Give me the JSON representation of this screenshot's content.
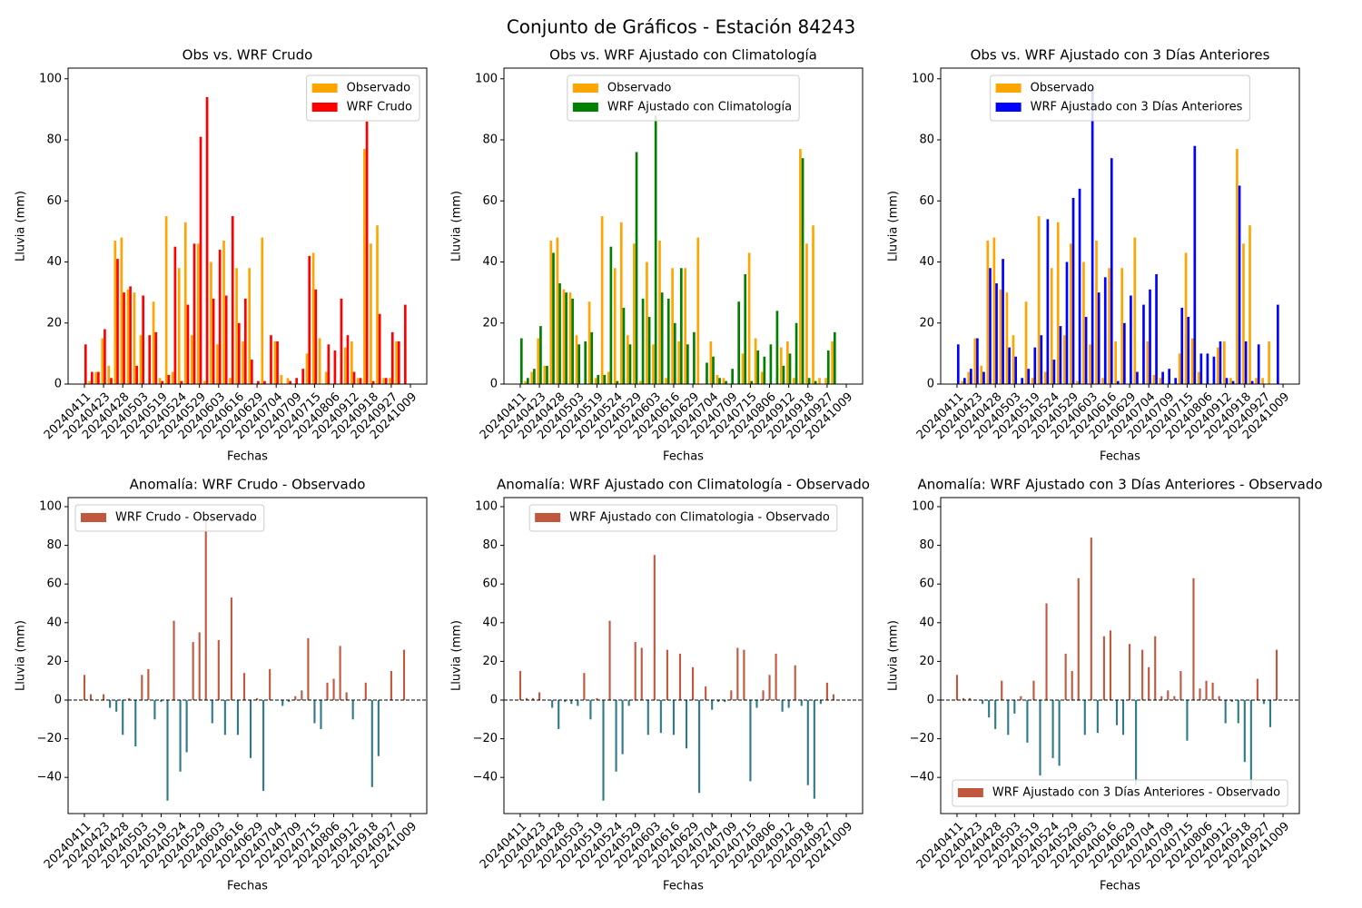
{
  "title": "Conjunto de Gráficos - Estación 84243",
  "chart_data": [
    {
      "type": "bar",
      "title": "Obs vs. WRF Crudo",
      "xlabel": "Fechas",
      "ylabel": "Lluvia (mm)",
      "legend": "upper right",
      "categories": [
        "20240411",
        null,
        null,
        "20240423",
        null,
        null,
        "20240428",
        null,
        null,
        "20240503",
        null,
        null,
        "20240519",
        null,
        null,
        "20240524",
        null,
        null,
        "20240529",
        null,
        null,
        "20240603",
        null,
        null,
        "20240616",
        null,
        null,
        "20240629",
        null,
        null,
        "20240704",
        null,
        null,
        "20240709",
        null,
        null,
        "20240715",
        null,
        null,
        "20240806",
        null,
        null,
        "20240912",
        null,
        null,
        "20240918",
        null,
        null,
        "20240927",
        null,
        null,
        "20241009"
      ],
      "ylim": [
        0,
        103.5
      ],
      "yticks": [
        0,
        20,
        40,
        60,
        80,
        100
      ],
      "series": [
        {
          "name": "Observado",
          "color": "#ffa500",
          "values": [
            0,
            1,
            4,
            15,
            6,
            47,
            48,
            31,
            30,
            16,
            0,
            27,
            2,
            55,
            4,
            38,
            53,
            16,
            46,
            1,
            40,
            13,
            47,
            2,
            38,
            14,
            38,
            0,
            48,
            0,
            14,
            3,
            2,
            0,
            0,
            10,
            43,
            15,
            4,
            0,
            0,
            12,
            14,
            2,
            77,
            46,
            52,
            2,
            2,
            14,
            0,
            0
          ]
        },
        {
          "name": "WRF Crudo",
          "color": "#ff0000",
          "values": [
            13,
            4,
            4,
            18,
            2,
            41,
            30,
            32,
            6,
            29,
            16,
            17,
            1,
            3,
            45,
            1,
            26,
            46,
            81,
            94,
            28,
            44,
            29,
            55,
            20,
            28,
            8,
            1,
            1,
            16,
            14,
            0,
            1,
            2,
            5,
            42,
            31,
            0,
            13,
            11,
            28,
            16,
            4,
            2,
            86,
            1,
            23,
            2,
            17,
            14,
            26,
            0
          ]
        }
      ]
    },
    {
      "type": "bar",
      "title": "Obs vs. WRF Ajustado con Climatología",
      "xlabel": "Fechas",
      "ylabel": "Lluvia (mm)",
      "legend": "upper center",
      "categories": [
        "20240411",
        null,
        null,
        "20240423",
        null,
        null,
        "20240428",
        null,
        null,
        "20240503",
        null,
        null,
        "20240519",
        null,
        null,
        "20240524",
        null,
        null,
        "20240529",
        null,
        null,
        "20240603",
        null,
        null,
        "20240616",
        null,
        null,
        "20240629",
        null,
        null,
        "20240704",
        null,
        null,
        "20240709",
        null,
        null,
        "20240715",
        null,
        null,
        "20240806",
        null,
        null,
        "20240912",
        null,
        null,
        "20240918",
        null,
        null,
        "20240927",
        null,
        null,
        "20241009"
      ],
      "ylim": [
        0,
        103.5
      ],
      "yticks": [
        0,
        20,
        40,
        60,
        80,
        100
      ],
      "series": [
        {
          "name": "Observado",
          "color": "#ffa500",
          "values": [
            0,
            1,
            4,
            15,
            6,
            47,
            48,
            31,
            30,
            16,
            0,
            27,
            2,
            55,
            4,
            38,
            53,
            16,
            46,
            1,
            40,
            13,
            47,
            2,
            38,
            14,
            38,
            0,
            48,
            0,
            14,
            3,
            2,
            0,
            0,
            10,
            43,
            15,
            4,
            0,
            0,
            12,
            14,
            2,
            77,
            46,
            52,
            2,
            2,
            14,
            0,
            0
          ]
        },
        {
          "name": "WRF Ajustado con Climatología",
          "color": "#008000",
          "values": [
            15,
            2,
            5,
            19,
            6,
            43,
            33,
            30,
            28,
            13,
            14,
            17,
            3,
            3,
            45,
            1,
            25,
            13,
            76,
            28,
            22,
            88,
            30,
            28,
            20,
            38,
            13,
            17,
            0,
            7,
            9,
            2,
            1,
            5,
            27,
            36,
            1,
            11,
            9,
            13,
            24,
            6,
            10,
            20,
            74,
            2,
            1,
            0,
            11,
            17,
            0,
            0
          ]
        }
      ]
    },
    {
      "type": "bar",
      "title": "Obs vs. WRF Ajustado con 3 Días Anteriores",
      "xlabel": "Fechas",
      "ylabel": "Lluvia (mm)",
      "legend": "upper center",
      "categories": [
        "20240411",
        null,
        null,
        "20240423",
        null,
        null,
        "20240428",
        null,
        null,
        "20240503",
        null,
        null,
        "20240519",
        null,
        null,
        "20240524",
        null,
        null,
        "20240529",
        null,
        null,
        "20240603",
        null,
        null,
        "20240616",
        null,
        null,
        "20240629",
        null,
        null,
        "20240704",
        null,
        null,
        "20240709",
        null,
        null,
        "20240715",
        null,
        null,
        "20240806",
        null,
        null,
        "20240912",
        null,
        null,
        "20240918",
        null,
        null,
        "20240927",
        null,
        null,
        "20241009"
      ],
      "ylim": [
        0,
        103.5
      ],
      "yticks": [
        0,
        20,
        40,
        60,
        80,
        100
      ],
      "series": [
        {
          "name": "Observado",
          "color": "#ffa500",
          "values": [
            0,
            1,
            4,
            15,
            6,
            47,
            48,
            31,
            30,
            16,
            0,
            27,
            2,
            55,
            4,
            38,
            53,
            16,
            46,
            1,
            40,
            13,
            47,
            2,
            38,
            14,
            38,
            0,
            48,
            0,
            14,
            3,
            2,
            0,
            0,
            10,
            43,
            15,
            4,
            0,
            0,
            12,
            14,
            2,
            77,
            46,
            52,
            2,
            2,
            14,
            0,
            0
          ]
        },
        {
          "name": "WRF Ajustado con 3 Días Anteriores",
          "color": "#0000ff",
          "values": [
            13,
            2,
            5,
            15,
            4,
            38,
            33,
            41,
            12,
            9,
            2,
            5,
            12,
            16,
            54,
            8,
            19,
            40,
            61,
            64,
            22,
            97,
            30,
            35,
            74,
            1,
            20,
            29,
            4,
            26,
            31,
            36,
            4,
            5,
            2,
            25,
            22,
            78,
            10,
            10,
            9,
            14,
            2,
            1,
            65,
            14,
            1,
            13,
            0,
            0,
            26,
            0
          ]
        }
      ]
    },
    {
      "type": "bar",
      "title": "Anomalía: WRF Crudo - Observado",
      "xlabel": "Fechas",
      "ylabel": "Lluvia (mm)",
      "legend": "upper left",
      "zero_line": true,
      "categories": [
        "20240411",
        null,
        null,
        "20240423",
        null,
        null,
        "20240428",
        null,
        null,
        "20240503",
        null,
        null,
        "20240519",
        null,
        null,
        "20240524",
        null,
        null,
        "20240529",
        null,
        null,
        "20240603",
        null,
        null,
        "20240616",
        null,
        null,
        "20240629",
        null,
        null,
        "20240704",
        null,
        null,
        "20240709",
        null,
        null,
        "20240715",
        null,
        null,
        "20240806",
        null,
        null,
        "20240912",
        null,
        null,
        "20240918",
        null,
        null,
        "20240927",
        null,
        null,
        "20241009"
      ],
      "ylim": [
        -58.7,
        104.7
      ],
      "yticks": [
        {
          "value": -40,
          "label": "−40"
        },
        {
          "value": -20,
          "label": "−20"
        },
        0,
        20,
        40,
        60,
        80,
        100
      ],
      "series": [
        {
          "name": "WRF Crudo - Observado",
          "color": "#c1583d",
          "negative_color": "#2f7a8a",
          "values": [
            13,
            3,
            0,
            3,
            -4,
            -6,
            -18,
            1,
            -24,
            13,
            16,
            -10,
            -1,
            -52,
            41,
            -37,
            -27,
            30,
            35,
            93,
            -12,
            31,
            -18,
            53,
            -18,
            14,
            -30,
            1,
            -47,
            16,
            0,
            -3,
            -1,
            2,
            5,
            32,
            -12,
            -15,
            9,
            11,
            28,
            4,
            -10,
            0,
            9,
            -45,
            -29,
            0,
            15,
            0,
            26,
            0
          ]
        }
      ]
    },
    {
      "type": "bar",
      "title": "Anomalía: WRF Ajustado con Climatología - Observado",
      "xlabel": "Fechas",
      "ylabel": "Lluvia (mm)",
      "legend": "upper center",
      "zero_line": true,
      "categories": [
        "20240411",
        null,
        null,
        "20240423",
        null,
        null,
        "20240428",
        null,
        null,
        "20240503",
        null,
        null,
        "20240519",
        null,
        null,
        "20240524",
        null,
        null,
        "20240529",
        null,
        null,
        "20240603",
        null,
        null,
        "20240616",
        null,
        null,
        "20240629",
        null,
        null,
        "20240704",
        null,
        null,
        "20240709",
        null,
        null,
        "20240715",
        null,
        null,
        "20240806",
        null,
        null,
        "20240912",
        null,
        null,
        "20240918",
        null,
        null,
        "20240927",
        null,
        null,
        "20241009"
      ],
      "ylim": [
        -58.7,
        104.7
      ],
      "yticks": [
        {
          "value": -40,
          "label": "−40"
        },
        {
          "value": -20,
          "label": "−20"
        },
        0,
        20,
        40,
        60,
        80,
        100
      ],
      "series": [
        {
          "name": "WRF Ajustado con Climatologia - Observado",
          "color": "#c1583d",
          "negative_color": "#2f7a8a",
          "values": [
            15,
            1,
            1,
            4,
            0,
            -4,
            -15,
            -1,
            -2,
            -3,
            14,
            -10,
            1,
            -52,
            41,
            -37,
            -28,
            -3,
            30,
            27,
            -18,
            75,
            -17,
            26,
            -18,
            24,
            -25,
            17,
            -48,
            7,
            -5,
            -1,
            -1,
            5,
            27,
            26,
            -42,
            -4,
            5,
            13,
            24,
            -6,
            -4,
            18,
            -3,
            -44,
            -51,
            -2,
            9,
            3,
            0,
            0
          ]
        }
      ]
    },
    {
      "type": "bar",
      "title": "Anomalía: WRF Ajustado con 3 Días Anteriores - Observado",
      "xlabel": "Fechas",
      "ylabel": "Lluvia (mm)",
      "legend": "lower center",
      "zero_line": true,
      "categories": [
        "20240411",
        null,
        null,
        "20240423",
        null,
        null,
        "20240428",
        null,
        null,
        "20240503",
        null,
        null,
        "20240519",
        null,
        null,
        "20240524",
        null,
        null,
        "20240529",
        null,
        null,
        "20240603",
        null,
        null,
        "20240616",
        null,
        null,
        "20240629",
        null,
        null,
        "20240704",
        null,
        null,
        "20240709",
        null,
        null,
        "20240715",
        null,
        null,
        "20240806",
        null,
        null,
        "20240912",
        null,
        null,
        "20240918",
        null,
        null,
        "20240927",
        null,
        null,
        "20241009"
      ],
      "ylim": [
        -58.7,
        104.7
      ],
      "yticks": [
        {
          "value": -40,
          "label": "−40"
        },
        {
          "value": -20,
          "label": "−20"
        },
        0,
        20,
        40,
        60,
        80,
        100
      ],
      "series": [
        {
          "name": "WRF Ajustado con 3 Días Anteriores - Observado",
          "color": "#c1583d",
          "negative_color": "#2f7a8a",
          "values": [
            13,
            1,
            1,
            0,
            -2,
            -9,
            -15,
            10,
            -18,
            -7,
            2,
            -22,
            10,
            -39,
            50,
            -30,
            -34,
            24,
            15,
            63,
            -18,
            84,
            -17,
            33,
            36,
            -13,
            -18,
            29,
            -44,
            26,
            17,
            33,
            2,
            5,
            2,
            15,
            -21,
            63,
            6,
            10,
            9,
            2,
            -12,
            -1,
            -12,
            -32,
            -51,
            11,
            -2,
            -14,
            26,
            0
          ]
        }
      ]
    }
  ]
}
